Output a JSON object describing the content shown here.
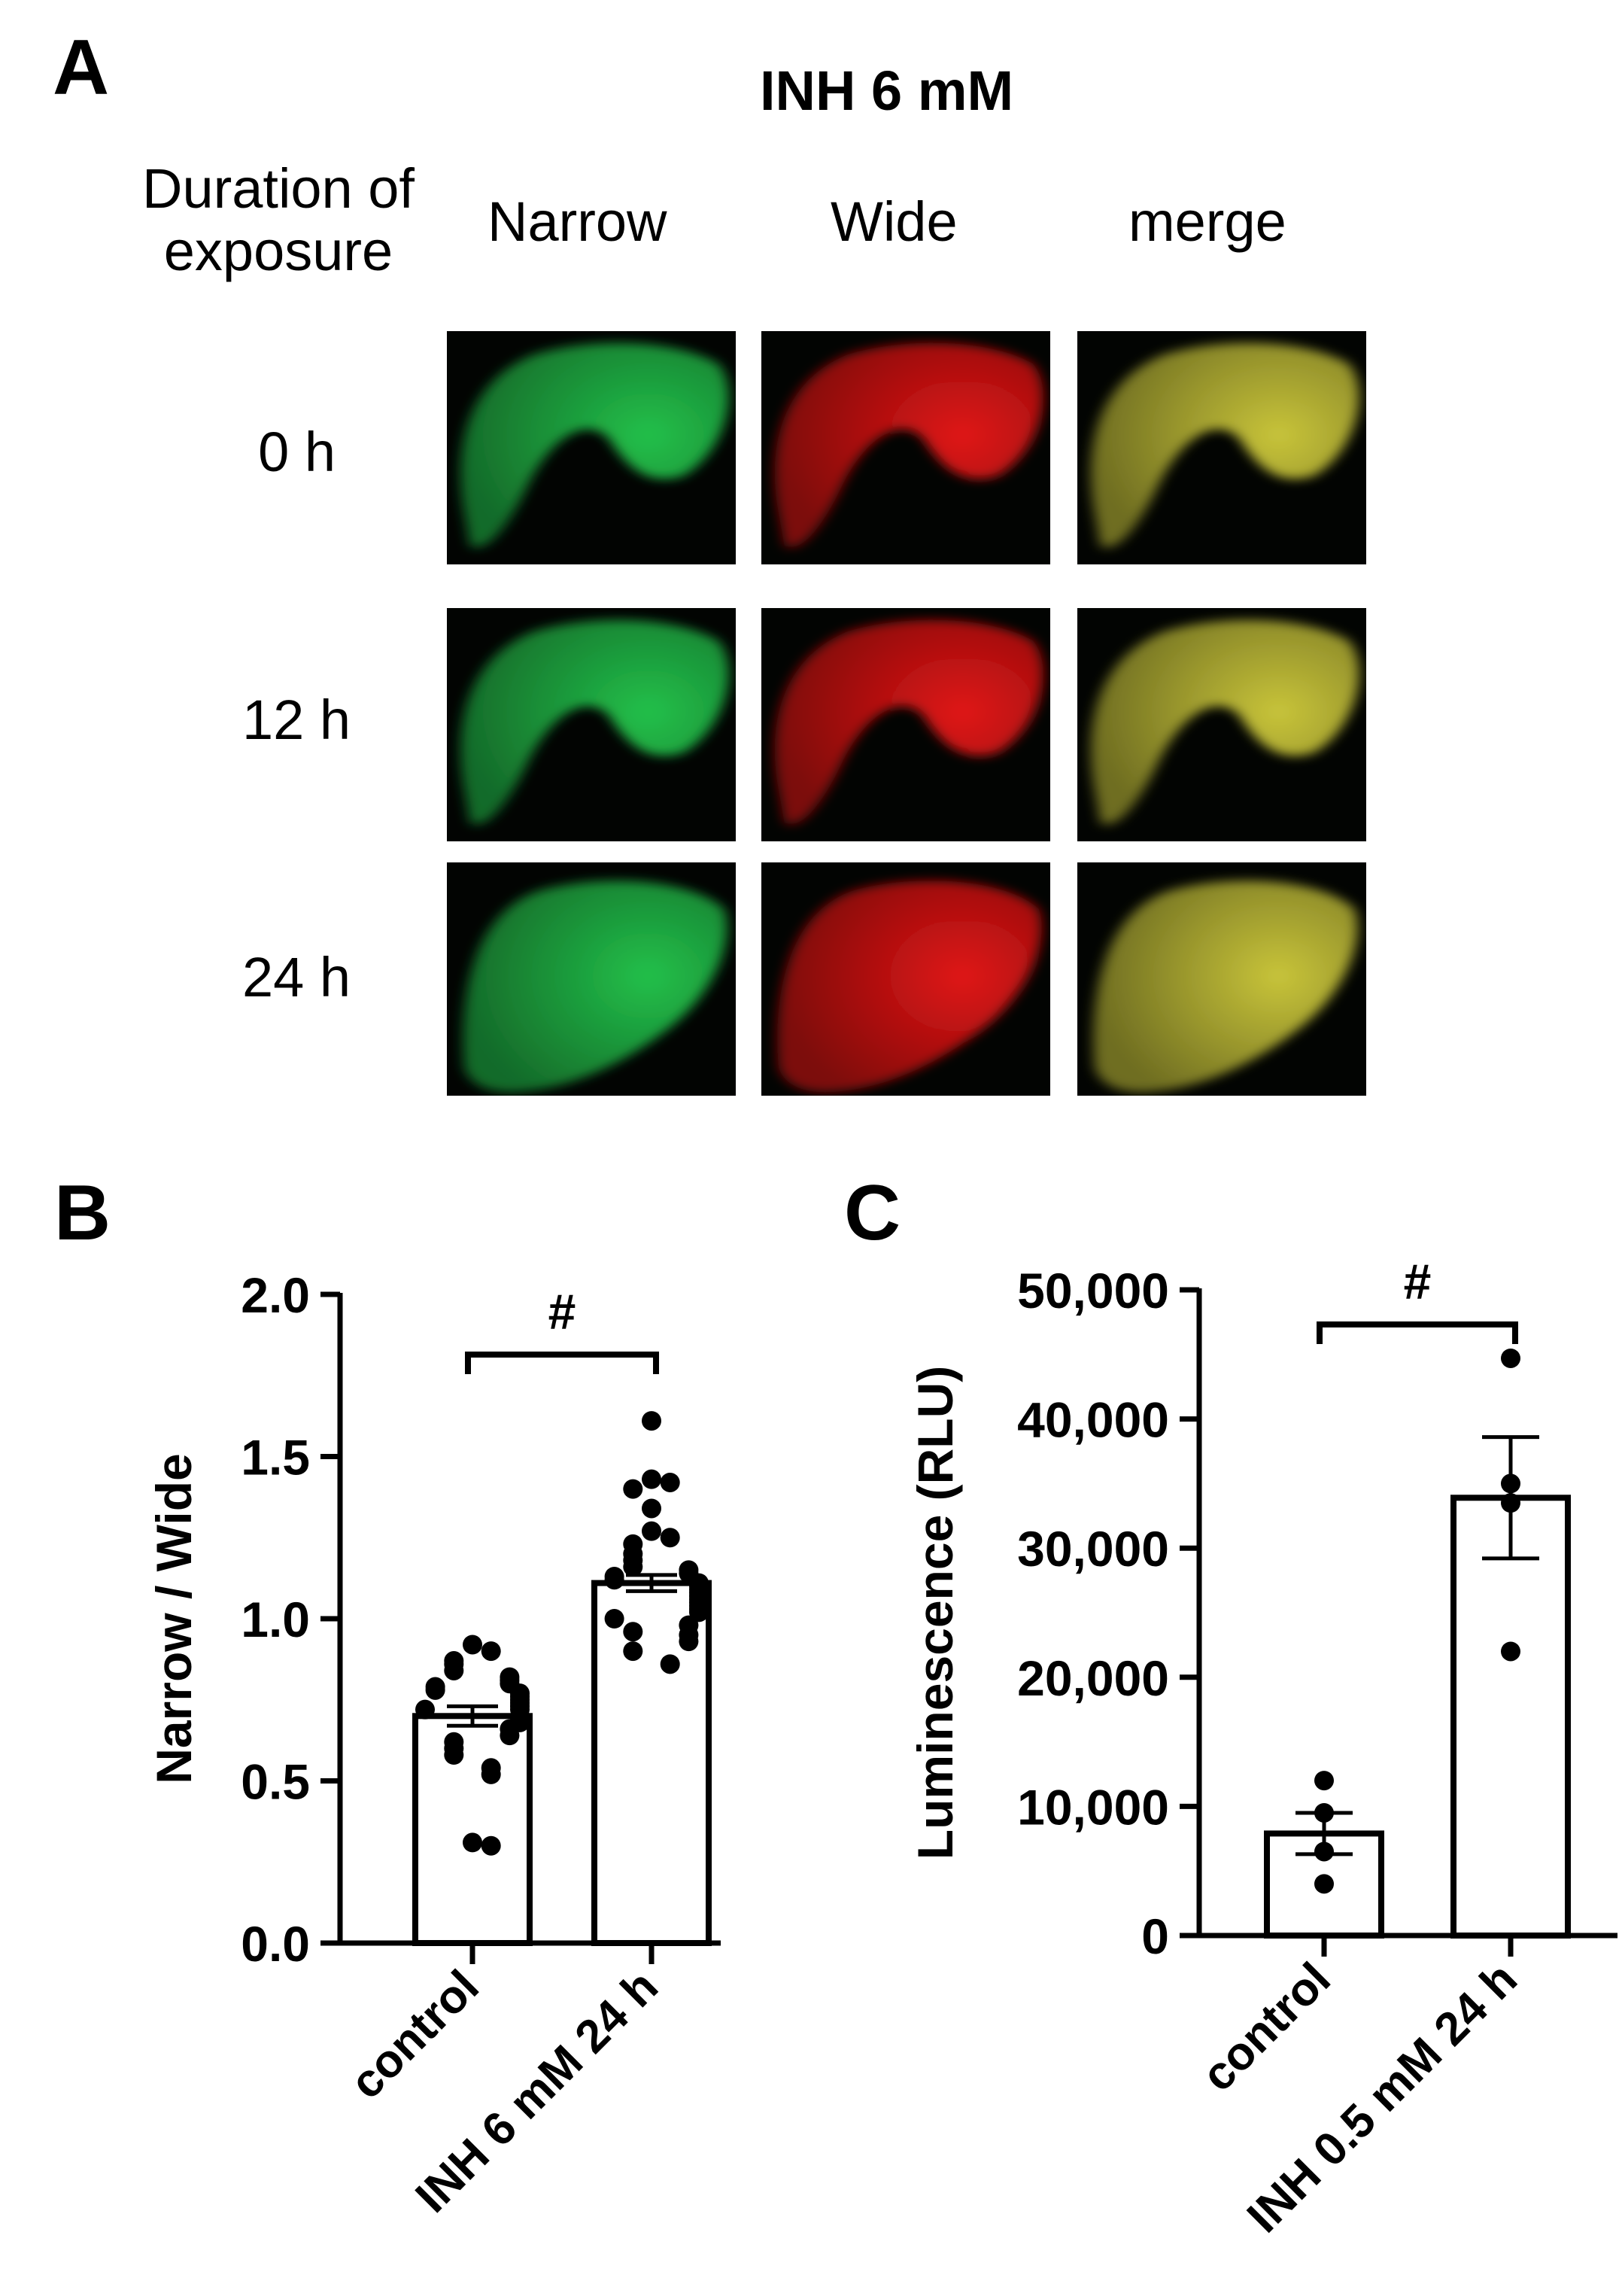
{
  "figure": {
    "panel_a": {
      "letter": "A",
      "title": "INH 6 mM",
      "duration_label": [
        "Duration of",
        "exposure"
      ],
      "columns": [
        "Narrow",
        "Wide",
        "merge"
      ],
      "rows": [
        "0 h",
        "12 h",
        "24 h"
      ],
      "channel_colors": {
        "Narrow": "#22c04a",
        "Wide": "#e01414",
        "merge": "#c8c43a"
      }
    },
    "panel_b": {
      "letter": "B"
    },
    "panel_c": {
      "letter": "C"
    }
  },
  "chart_data": [
    {
      "id": "B",
      "type": "bar",
      "ylabel": "Narrow / Wide",
      "ylim": [
        0,
        2.0
      ],
      "yticks": [
        0.0,
        0.5,
        1.0,
        1.5,
        2.0
      ],
      "ytick_labels": [
        "0.0",
        "0.5",
        "1.0",
        "1.5",
        "2.0"
      ],
      "categories": [
        "control",
        "INH 6 mM 24 h"
      ],
      "values": [
        0.7,
        1.11
      ],
      "sem": [
        0.03,
        0.025
      ],
      "points": [
        [
          0.92,
          0.9,
          0.87,
          0.86,
          0.84,
          0.82,
          0.81,
          0.8,
          0.79,
          0.78,
          0.77,
          0.76,
          0.75,
          0.74,
          0.73,
          0.72,
          0.72,
          0.7,
          0.69,
          0.68,
          0.66,
          0.64,
          0.62,
          0.6,
          0.58,
          0.54,
          0.52,
          0.31,
          0.3
        ],
        [
          1.61,
          1.43,
          1.42,
          1.4,
          1.34,
          1.27,
          1.25,
          1.23,
          1.2,
          1.18,
          1.16,
          1.15,
          1.14,
          1.13,
          1.12,
          1.11,
          1.1,
          1.09,
          1.08,
          1.07,
          1.06,
          1.05,
          1.04,
          1.03,
          1.02,
          1.0,
          0.98,
          0.96,
          0.95,
          0.93,
          0.9,
          0.86
        ]
      ],
      "significance": "#",
      "grid": false
    },
    {
      "id": "C",
      "type": "bar",
      "ylabel": "Luminescence (RLU)",
      "ylim": [
        0,
        50000
      ],
      "yticks": [
        0,
        10000,
        20000,
        30000,
        40000,
        50000
      ],
      "ytick_labels": [
        "0",
        "10,000",
        "20,000",
        "30,000",
        "40,000",
        "50,000"
      ],
      "categories": [
        "control",
        "INH 0.5 mM 24 h"
      ],
      "values": [
        7900,
        33900
      ],
      "sem": [
        1600,
        4700
      ],
      "points": [
        [
          12000,
          9500,
          6500,
          4000
        ],
        [
          44700,
          35000,
          33500,
          22000
        ]
      ],
      "significance": "#",
      "grid": false
    }
  ]
}
